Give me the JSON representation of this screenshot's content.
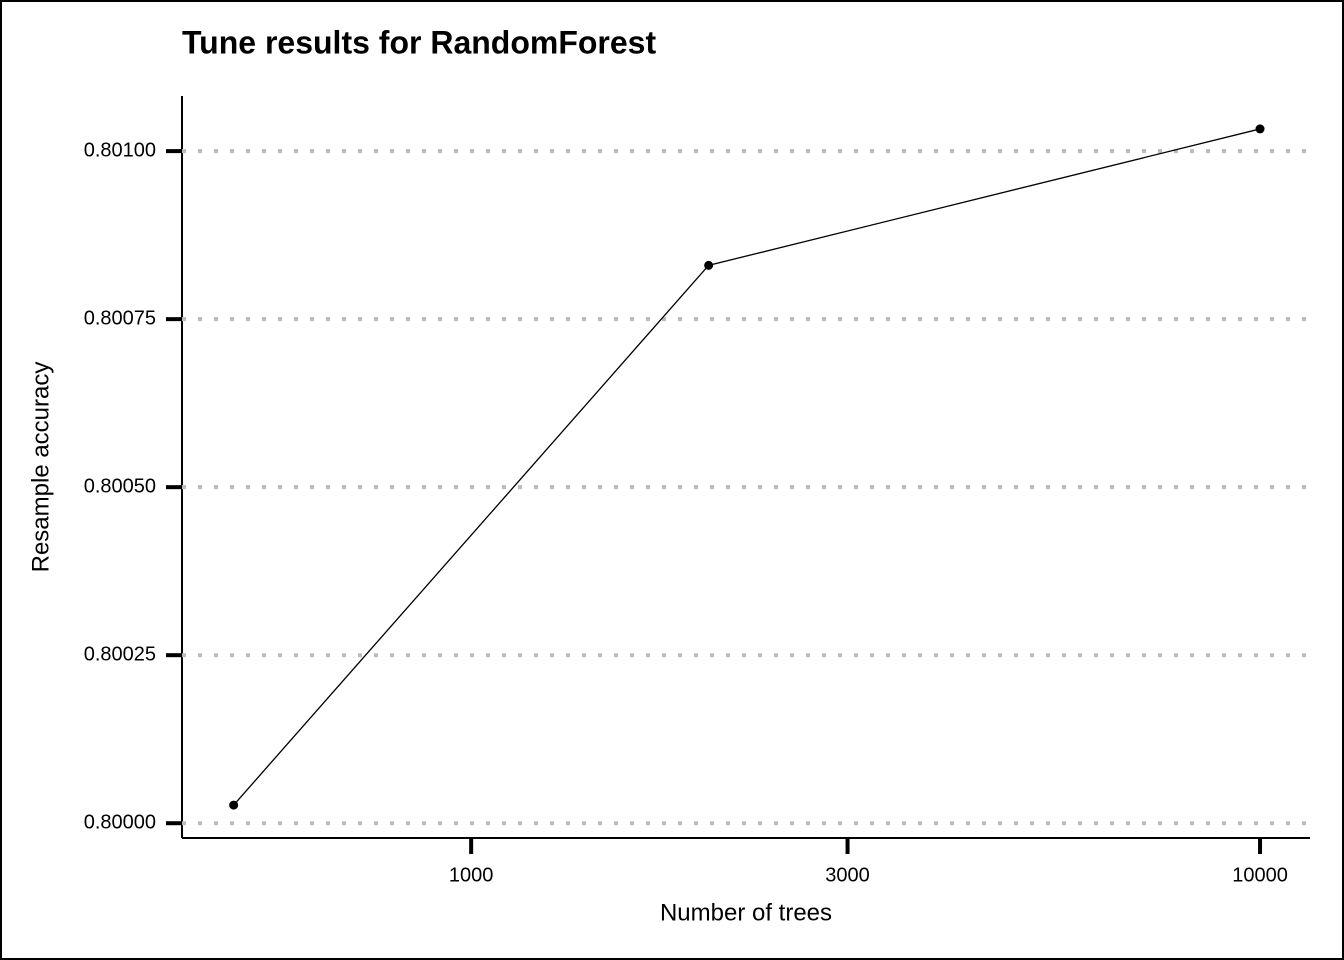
{
  "chart_data": {
    "type": "line",
    "title": "Tune results for RandomForest",
    "x_label": "Number of trees",
    "y_label": "Resample accuracy",
    "x": [
      500,
      2000,
      10000
    ],
    "series": [
      {
        "name": "RandomForest",
        "color": "#000000",
        "values": [
          0.800027,
          0.80083,
          0.801033
        ]
      }
    ],
    "xlim": [
      430,
      11570
    ],
    "xticks": [
      1000,
      3000,
      10000
    ],
    "xscale": "log",
    "ylim": [
      0.799978,
      0.801082
    ],
    "yticks": [
      {
        "value": 0.8,
        "label": "0.80000"
      },
      {
        "value": 0.80025,
        "label": "0.80025"
      },
      {
        "value": 0.8005,
        "label": "0.80050"
      },
      {
        "value": 0.80075,
        "label": "0.80075"
      },
      {
        "value": 0.801,
        "label": "0.80100"
      }
    ],
    "grid": true
  }
}
